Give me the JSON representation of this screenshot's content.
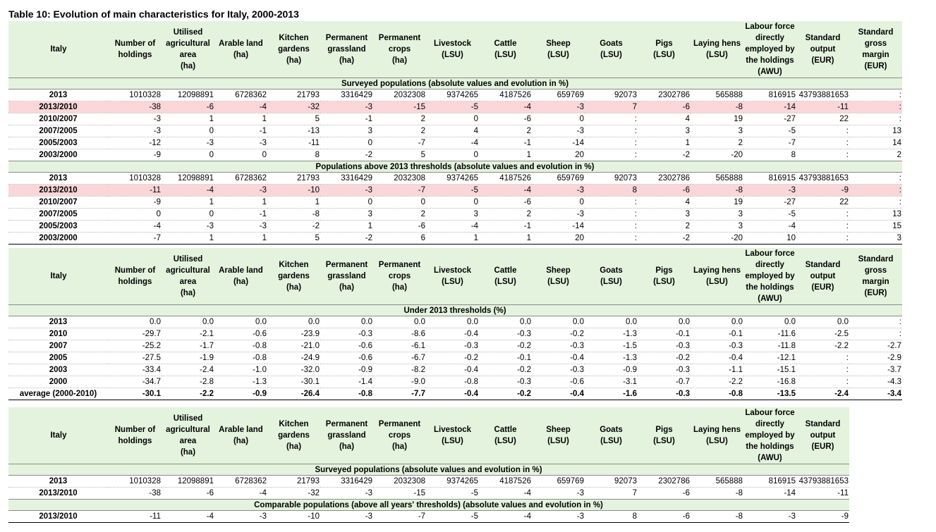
{
  "title": "Table 10: Evolution of main characteristics for Italy, 2000-2013",
  "header": {
    "row_label": "Italy",
    "columns": [
      [
        "Number of",
        "holdings"
      ],
      [
        "Utilised",
        "agricultural",
        "area",
        "(ha)"
      ],
      [
        "Arable land",
        "(ha)"
      ],
      [
        "Kitchen",
        "gardens",
        "(ha)"
      ],
      [
        "Permanent",
        "grassland",
        "(ha)"
      ],
      [
        "Permanent",
        "crops",
        "(ha)"
      ],
      [
        "Livestock",
        "(LSU)"
      ],
      [
        "Cattle",
        "(LSU)"
      ],
      [
        "Sheep",
        "(LSU)"
      ],
      [
        "Goats",
        "(LSU)"
      ],
      [
        "Pigs",
        "(LSU)"
      ],
      [
        "Laying hens",
        "(LSU)"
      ],
      [
        "Labour force",
        "directly",
        "employed by",
        "the holdings",
        "(AWU)"
      ],
      [
        "Standard",
        "output",
        "(EUR)"
      ],
      [
        "Standard",
        "gross",
        "margin",
        "(EUR)"
      ]
    ]
  },
  "table1": {
    "sections": [
      {
        "title": "Surveyed populations (absolute values and evolution in %)",
        "rows": [
          {
            "label": "2013",
            "values": [
              "1010328",
              "12098891",
              "6728362",
              "21793",
              "3316429",
              "2032308",
              "9374265",
              "4187526",
              "659769",
              "92073",
              "2302786",
              "565888",
              "816915",
              "43793881653",
              ":"
            ]
          },
          {
            "label": "2013/2010",
            "pink": true,
            "values": [
              "-38",
              "-6",
              "-4",
              "-32",
              "-3",
              "-15",
              "-5",
              "-4",
              "-3",
              "7",
              "-6",
              "-8",
              "-14",
              "-11",
              ":"
            ]
          },
          {
            "label": "2010/2007",
            "values": [
              "-3",
              "1",
              "1",
              "5",
              "-1",
              "2",
              "0",
              "-6",
              "0",
              ":",
              "4",
              "19",
              "-27",
              "22",
              ":"
            ]
          },
          {
            "label": "2007/2005",
            "values": [
              "-3",
              "0",
              "-1",
              "-13",
              "3",
              "2",
              "4",
              "2",
              "-3",
              ":",
              "3",
              "3",
              "-5",
              ":",
              "13"
            ]
          },
          {
            "label": "2005/2003",
            "values": [
              "-12",
              "-3",
              "-3",
              "-11",
              "0",
              "-7",
              "-4",
              "-1",
              "-14",
              ":",
              "1",
              "2",
              "-7",
              ":",
              "14"
            ]
          },
          {
            "label": "2003/2000",
            "values": [
              "-9",
              "0",
              "0",
              "8",
              "-2",
              "5",
              "0",
              "1",
              "20",
              ":",
              "-2",
              "-20",
              "8",
              ":",
              "2"
            ]
          }
        ]
      },
      {
        "title": "Populations  above 2013 thresholds (absolute values and evolution in %)",
        "rows": [
          {
            "label": "2013",
            "values": [
              "1010328",
              "12098891",
              "6728362",
              "21793",
              "3316429",
              "2032308",
              "9374265",
              "4187526",
              "659769",
              "92073",
              "2302786",
              "565888",
              "816915",
              "43793881653",
              ":"
            ]
          },
          {
            "label": "2013/2010",
            "pink": true,
            "values": [
              "-11",
              "-4",
              "-3",
              "-10",
              "-3",
              "-7",
              "-5",
              "-4",
              "-3",
              "8",
              "-6",
              "-8",
              "-3",
              "-9",
              ":"
            ]
          },
          {
            "label": "2010/2007",
            "values": [
              "-9",
              "1",
              "1",
              "1",
              "0",
              "0",
              "0",
              "-6",
              "0",
              ":",
              "4",
              "19",
              "-27",
              "22",
              ":"
            ]
          },
          {
            "label": "2007/2005",
            "values": [
              "0",
              "0",
              "-1",
              "-8",
              "3",
              "2",
              "3",
              "2",
              "-3",
              ":",
              "3",
              "3",
              "-5",
              ":",
              "13"
            ]
          },
          {
            "label": "2005/2003",
            "values": [
              "-4",
              "-3",
              "-3",
              "-2",
              "1",
              "-6",
              "-4",
              "-1",
              "-14",
              ":",
              "2",
              "3",
              "-4",
              ":",
              "15"
            ]
          },
          {
            "label": "2003/2000",
            "values": [
              "-7",
              "1",
              "1",
              "5",
              "-2",
              "6",
              "1",
              "1",
              "20",
              ":",
              "-2",
              "-20",
              "10",
              ":",
              "3"
            ]
          }
        ]
      }
    ]
  },
  "table2": {
    "sections": [
      {
        "title": "Under 2013 thresholds (%)",
        "rows": [
          {
            "label": "2013",
            "values": [
              "0.0",
              "0.0",
              "0.0",
              "0.0",
              "0.0",
              "0.0",
              "0.0",
              "0.0",
              "0.0",
              "0.0",
              "0.0",
              "0.0",
              "0.0",
              "0.0",
              ":"
            ]
          },
          {
            "label": "2010",
            "values": [
              "-29.7",
              "-2.1",
              "-0.6",
              "-23.9",
              "-0.3",
              "-8.6",
              "-0.4",
              "-0.3",
              "-0.2",
              "-1.3",
              "-0.1",
              "-0.1",
              "-11.6",
              "-2.5",
              ":"
            ]
          },
          {
            "label": "2007",
            "values": [
              "-25.2",
              "-1.7",
              "-0.8",
              "-21.0",
              "-0.6",
              "-6.1",
              "-0.3",
              "-0.2",
              "-0.3",
              "-1.5",
              "-0.3",
              "-0.3",
              "-11.8",
              "-2.2",
              "-2.7"
            ]
          },
          {
            "label": "2005",
            "values": [
              "-27.5",
              "-1.9",
              "-0.8",
              "-24.9",
              "-0.6",
              "-6.7",
              "-0.2",
              "-0.1",
              "-0.4",
              "-1.3",
              "-0.2",
              "-0.4",
              "-12.1",
              ":",
              "-2.9"
            ]
          },
          {
            "label": "2003",
            "values": [
              "-33.4",
              "-2.4",
              "-1.0",
              "-32.0",
              "-0.9",
              "-8.2",
              "-0.4",
              "-0.2",
              "-0.3",
              "-0.9",
              "-0.3",
              "-1.1",
              "-15.1",
              ":",
              "-3.7"
            ]
          },
          {
            "label": "2000",
            "values": [
              "-34.7",
              "-2.8",
              "-1.3",
              "-30.1",
              "-1.4",
              "-9.0",
              "-0.8",
              "-0.3",
              "-0.6",
              "-3.1",
              "-0.7",
              "-2.2",
              "-16.8",
              ":",
              "-4.3"
            ]
          },
          {
            "label": "average (2000-2010)",
            "bold": true,
            "values": [
              "-30.1",
              "-2.2",
              "-0.9",
              "-26.4",
              "-0.8",
              "-7.7",
              "-0.4",
              "-0.2",
              "-0.4",
              "-1.6",
              "-0.3",
              "-0.8",
              "-13.5",
              "-2.4",
              "-3.4"
            ]
          }
        ]
      }
    ]
  },
  "table3": {
    "sections": [
      {
        "title": "Surveyed populations (absolute values and evolution in %)",
        "rows": [
          {
            "label": "2013",
            "values": [
              "1010328",
              "12098891",
              "6728362",
              "21793",
              "3316429",
              "2032308",
              "9374265",
              "4187526",
              "659769",
              "92073",
              "2302786",
              "565888",
              "816915",
              "43793881653"
            ]
          },
          {
            "label": "2013/2010",
            "values": [
              "-38",
              "-6",
              "-4",
              "-32",
              "-3",
              "-15",
              "-5",
              "-4",
              "-3",
              "7",
              "-6",
              "-8",
              "-14",
              "-11"
            ]
          }
        ]
      },
      {
        "title": "Comparable populations  (above all years' thresholds)  (absolute values and evolution in %)",
        "rows": [
          {
            "label": "2013/2010",
            "values": [
              "-11",
              "-4",
              "-3",
              "-10",
              "-3",
              "-7",
              "-5",
              "-4",
              "-3",
              "8",
              "-6",
              "-8",
              "-3",
              "-9"
            ]
          }
        ]
      }
    ]
  }
}
